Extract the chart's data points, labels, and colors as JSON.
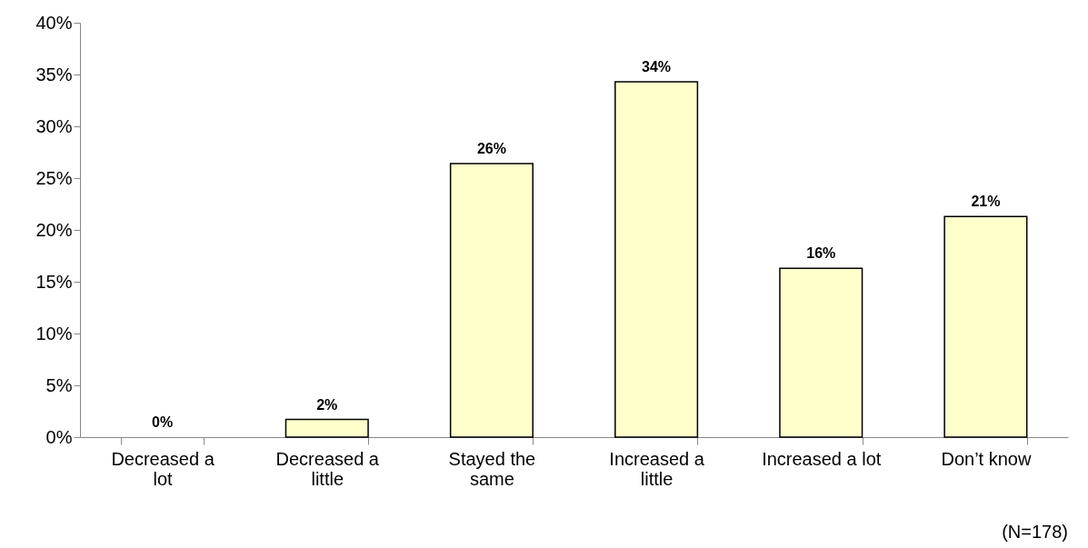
{
  "chart_data": {
    "type": "bar",
    "categories": [
      "Decreased a\nlot",
      "Decreased a\nlittle",
      "Stayed the\nsame",
      "Increased a\nlittle",
      "Increased a lot",
      "Don’t know"
    ],
    "values": [
      0,
      1.7,
      26.4,
      34.3,
      16.3,
      21.3
    ],
    "value_labels": [
      "0%",
      "2%",
      "26%",
      "34%",
      "16%",
      "21%"
    ],
    "color": "#ffffcc",
    "ylim": [
      0,
      40
    ],
    "yticks": [
      {
        "value": 0,
        "label": "0%"
      },
      {
        "value": 5,
        "label": "5%"
      },
      {
        "value": 10,
        "label": "10%"
      },
      {
        "value": 15,
        "label": "15%"
      },
      {
        "value": 20,
        "label": "20%"
      },
      {
        "value": 25,
        "label": "25%"
      },
      {
        "value": 30,
        "label": "30%"
      },
      {
        "value": 35,
        "label": "35%"
      },
      {
        "value": 40,
        "label": "40%"
      }
    ],
    "grid": false,
    "annotations": [
      "(N=178)"
    ]
  }
}
